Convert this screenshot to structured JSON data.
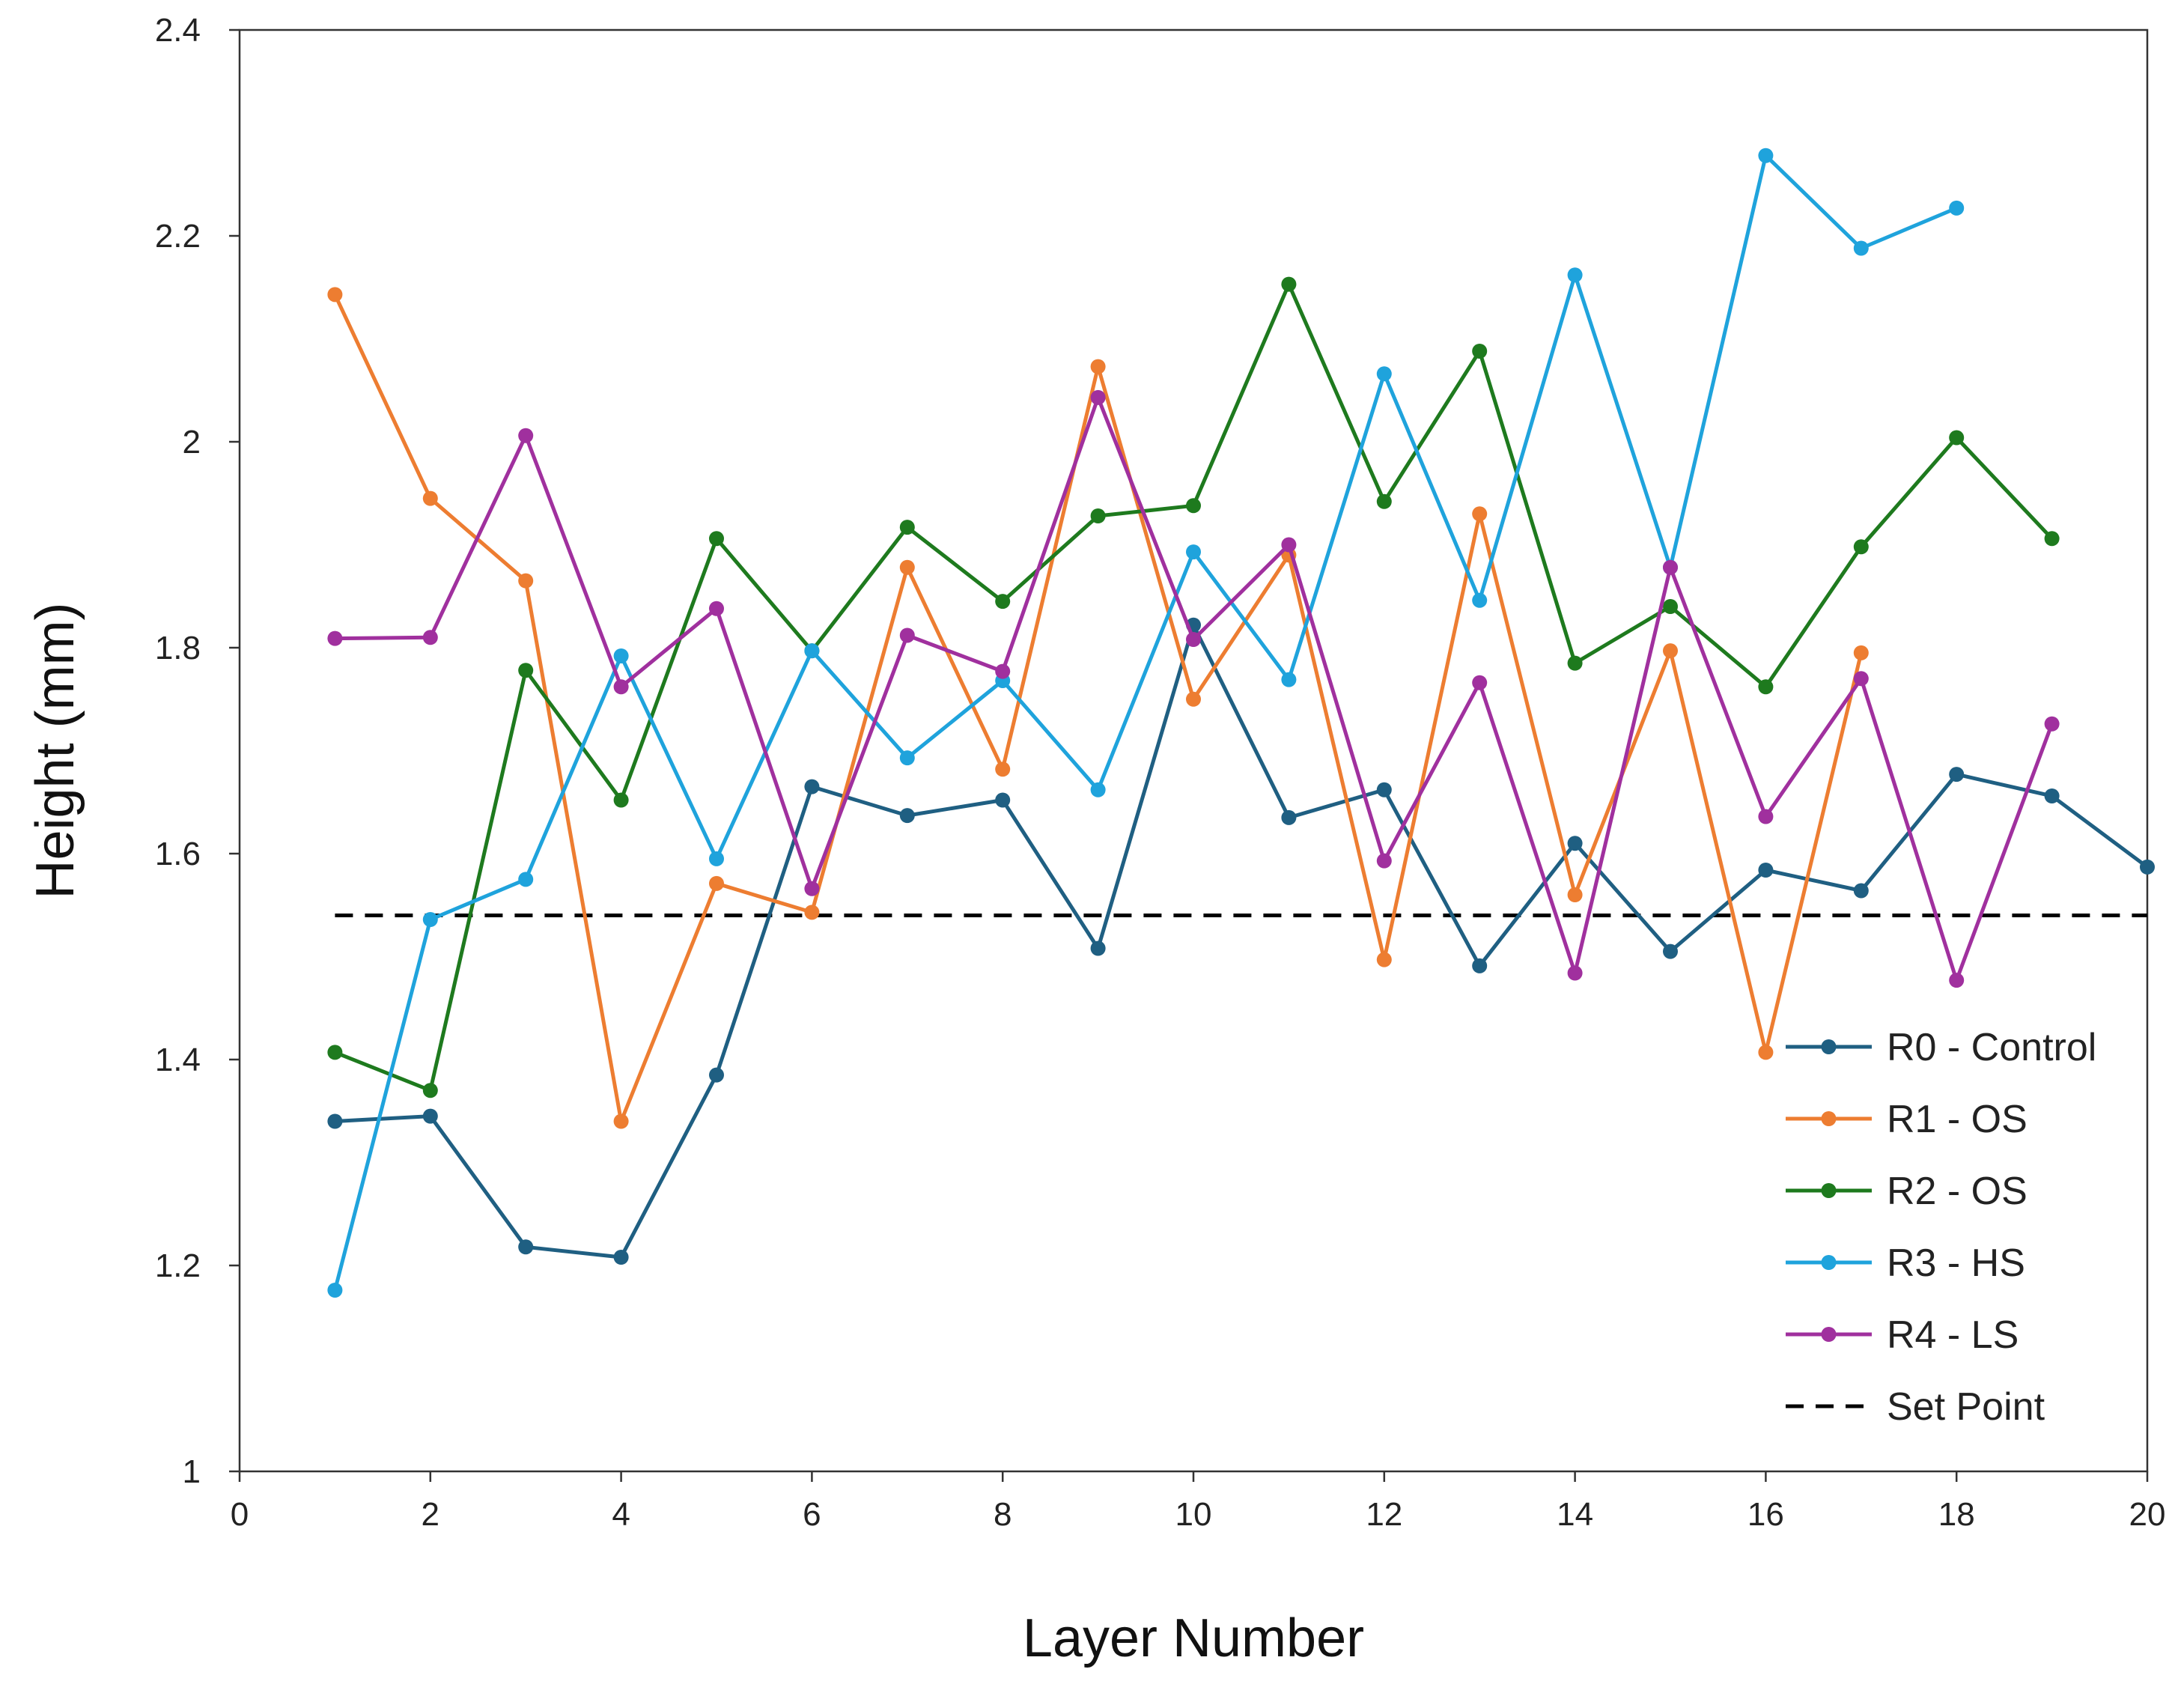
{
  "chart_data": {
    "type": "line",
    "title": "",
    "xlabel": "Layer Number",
    "ylabel": "Height (mm)",
    "xlim": [
      0,
      20
    ],
    "ylim": [
      1,
      2.4
    ],
    "xticks": [
      0,
      2,
      4,
      6,
      8,
      10,
      12,
      14,
      16,
      18,
      20
    ],
    "yticks": [
      1,
      1.2,
      1.4,
      1.6,
      1.8,
      2,
      2.2,
      2.4
    ],
    "ytick_labels": [
      "1",
      "1.2",
      "1.4",
      "1.6",
      "1.8",
      "2",
      "2.2",
      "2.4"
    ],
    "grid": false,
    "legend_position": "bottom-right",
    "series": [
      {
        "name": "R0 - Control",
        "color": "#1f5f82",
        "x": [
          1,
          2,
          3,
          4,
          5,
          6,
          7,
          8,
          9,
          10,
          11,
          12,
          13,
          14,
          15,
          16,
          17,
          18,
          19,
          20
        ],
        "values": [
          1.34,
          1.345,
          1.218,
          1.208,
          1.385,
          1.665,
          1.637,
          1.652,
          1.508,
          1.822,
          1.635,
          1.662,
          1.491,
          1.61,
          1.505,
          1.584,
          1.564,
          1.677,
          1.656,
          1.587
        ]
      },
      {
        "name": "R1 - OS",
        "color": "#ed7d31",
        "x": [
          1,
          2,
          3,
          4,
          5,
          6,
          7,
          8,
          9,
          10,
          11,
          12,
          13,
          14,
          15,
          16,
          17
        ],
        "values": [
          2.143,
          1.945,
          1.865,
          1.34,
          1.571,
          1.543,
          1.878,
          1.682,
          2.073,
          1.75,
          1.89,
          1.497,
          1.93,
          1.56,
          1.797,
          1.407,
          1.795
        ]
      },
      {
        "name": "R2 - OS",
        "color": "#1e7a1e",
        "x": [
          1,
          2,
          3,
          4,
          5,
          6,
          7,
          8,
          9,
          10,
          11,
          12,
          13,
          14,
          15,
          16,
          17,
          18,
          19
        ],
        "values": [
          1.407,
          1.37,
          1.778,
          1.652,
          1.906,
          1.797,
          1.917,
          1.845,
          1.928,
          1.938,
          2.153,
          1.942,
          2.088,
          1.785,
          1.84,
          1.762,
          1.898,
          2.004,
          1.906
        ]
      },
      {
        "name": "R3 - HS",
        "color": "#1fa3dc",
        "x": [
          1,
          2,
          3,
          4,
          5,
          6,
          7,
          8,
          9,
          10,
          11,
          12,
          13,
          14,
          15,
          16,
          17,
          18
        ],
        "values": [
          1.176,
          1.536,
          1.575,
          1.792,
          1.595,
          1.797,
          1.693,
          1.768,
          1.662,
          1.893,
          1.769,
          2.066,
          1.846,
          2.162,
          1.878,
          2.278,
          2.188,
          2.227
        ]
      },
      {
        "name": "R4 - LS",
        "color": "#a0309e",
        "x": [
          1,
          2,
          3,
          4,
          5,
          6,
          7,
          8,
          9,
          10,
          11,
          12,
          13,
          14,
          15,
          16,
          17,
          18,
          19
        ],
        "values": [
          1.809,
          1.81,
          2.006,
          1.762,
          1.838,
          1.566,
          1.812,
          1.777,
          2.043,
          1.808,
          1.9,
          1.593,
          1.766,
          1.484,
          1.878,
          1.636,
          1.77,
          1.477,
          1.726
        ]
      }
    ],
    "reference_line": {
      "name": "Set Point",
      "color": "#000000",
      "value": 1.54,
      "x_range": [
        1,
        20
      ]
    }
  }
}
